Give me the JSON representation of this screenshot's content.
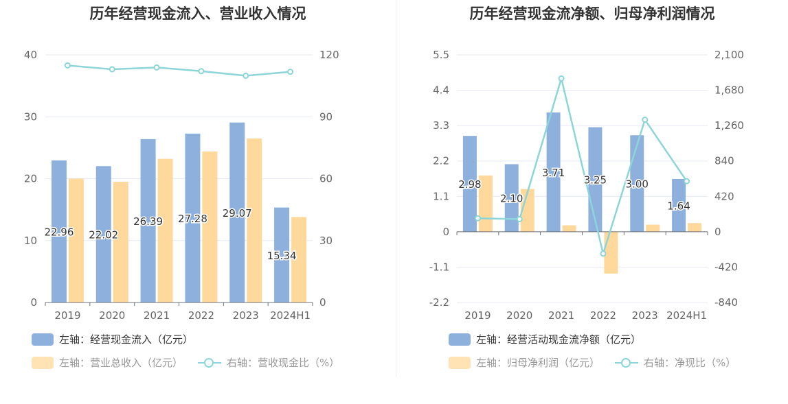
{
  "chart_data": [
    {
      "type": "bar",
      "title": "历年经营现金流入、营业收入情况",
      "categories": [
        "2019",
        "2020",
        "2021",
        "2022",
        "2023",
        "2024H1"
      ],
      "y_left": {
        "min": 0,
        "max": 40,
        "ticks": [
          "0",
          "10",
          "20",
          "30",
          "40"
        ]
      },
      "y_right": {
        "min": 0,
        "max": 120,
        "ticks": [
          "0",
          "30",
          "60",
          "90",
          "120"
        ]
      },
      "series": [
        {
          "name": "左轴：经营现金流入（亿元）",
          "kind": "bar",
          "axis": "left",
          "color": "#8eb0dd",
          "values": [
            22.96,
            22.02,
            26.39,
            27.28,
            29.07,
            15.34
          ],
          "labels": [
            "22.96",
            "22.02",
            "26.39",
            "27.28",
            "29.07",
            "15.34"
          ]
        },
        {
          "name": "左轴：营业总收入（亿元）",
          "kind": "bar",
          "axis": "left",
          "color": "#ffd99c",
          "values": [
            20.0,
            19.5,
            23.2,
            24.4,
            26.5,
            13.8
          ]
        },
        {
          "name": "右轴：营收现金比（%）",
          "kind": "line",
          "axis": "right",
          "color": "#8cd5d9",
          "values": [
            114.9,
            113.0,
            113.9,
            112.1,
            109.9,
            111.8
          ]
        }
      ],
      "legend_rows": [
        [
          0
        ],
        [
          1,
          2
        ]
      ]
    },
    {
      "type": "bar",
      "title": "历年经营现金流净额、归母净利润情况",
      "categories": [
        "2019",
        "2020",
        "2021",
        "2022",
        "2023",
        "2024H1"
      ],
      "y_left": {
        "min": -2.2,
        "max": 5.5,
        "ticks": [
          "-2.2",
          "-1.1",
          "0",
          "1.1",
          "2.2",
          "3.3",
          "4.4",
          "5.5"
        ]
      },
      "y_right": {
        "min": -840,
        "max": 2100,
        "ticks": [
          "-840",
          "-420",
          "0",
          "420",
          "840",
          "1,260",
          "1,680",
          "2,100"
        ]
      },
      "series": [
        {
          "name": "左轴：经营活动现金流净额（亿元）",
          "kind": "bar",
          "axis": "left",
          "color": "#8eb0dd",
          "values": [
            2.98,
            2.1,
            3.71,
            3.25,
            3.0,
            1.64
          ],
          "labels": [
            "2.98",
            "2.10",
            "3.71",
            "3.25",
            "3.00",
            "1.64"
          ]
        },
        {
          "name": "左轴：归母净利润（亿元）",
          "kind": "bar",
          "axis": "left",
          "color": "#ffd99c",
          "values": [
            1.75,
            1.33,
            0.2,
            -1.3,
            0.22,
            0.27
          ]
        },
        {
          "name": "右轴：净现比（%）",
          "kind": "line",
          "axis": "right",
          "color": "#8cd5d9",
          "values": [
            160,
            150,
            1820,
            -260,
            1330,
            600
          ]
        }
      ],
      "legend_rows": [
        [
          0
        ],
        [
          1,
          2
        ]
      ]
    }
  ]
}
